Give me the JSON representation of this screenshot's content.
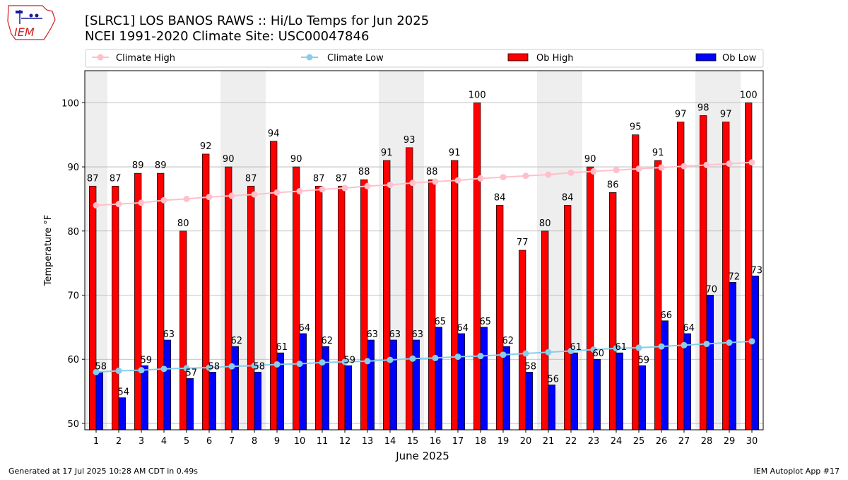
{
  "header": {
    "logo_text": "IEM",
    "title_line1": "[SLRC1] LOS BANOS RAWS :: Hi/Lo Temps for Jun 2025",
    "title_line2": "NCEI 1991-2020 Climate Site: USC00047846"
  },
  "footer": {
    "generated": "Generated at 17 Jul 2025 10:28 AM CDT in 0.49s",
    "app": "IEM Autoplot App #17"
  },
  "colors": {
    "ob_high": "#ff0000",
    "ob_low": "#0000ff",
    "climate_high": "#ffc0cb",
    "climate_low": "#87ceeb",
    "weekend_band": "#eeeeee"
  },
  "chart_data": {
    "type": "bar",
    "xlabel": "June 2025",
    "ylabel": "Temperature °F",
    "ylim": [
      49,
      105
    ],
    "yticks": [
      50,
      60,
      70,
      80,
      90,
      100
    ],
    "xlim": [
      0.5,
      30.5
    ],
    "grid": "horizontal",
    "legend_placement": "top",
    "categories": [
      "1",
      "2",
      "3",
      "4",
      "5",
      "6",
      "7",
      "8",
      "9",
      "10",
      "11",
      "12",
      "13",
      "14",
      "15",
      "16",
      "17",
      "18",
      "19",
      "20",
      "21",
      "22",
      "23",
      "24",
      "25",
      "26",
      "27",
      "28",
      "29",
      "30"
    ],
    "weekend_day_pairs": [
      [
        1,
        1
      ],
      [
        7,
        8
      ],
      [
        14,
        15
      ],
      [
        21,
        22
      ],
      [
        28,
        29
      ]
    ],
    "series": [
      {
        "name": "Ob High",
        "kind": "bar",
        "values": [
          87,
          87,
          89,
          89,
          80,
          92,
          90,
          87,
          94,
          90,
          87,
          87,
          88,
          91,
          93,
          88,
          91,
          100,
          84,
          77,
          80,
          84,
          90,
          86,
          95,
          91,
          97,
          98,
          97,
          100
        ]
      },
      {
        "name": "Ob Low",
        "kind": "bar",
        "values": [
          58,
          54,
          59,
          63,
          57,
          58,
          62,
          58,
          61,
          64,
          62,
          59,
          63,
          63,
          63,
          65,
          64,
          65,
          62,
          58,
          56,
          61,
          60,
          61,
          59,
          66,
          64,
          70,
          72,
          73
        ]
      },
      {
        "name": "Climate High",
        "kind": "line",
        "values": [
          84.0,
          84.2,
          84.4,
          84.8,
          85.0,
          85.3,
          85.5,
          85.7,
          86.0,
          86.2,
          86.5,
          86.7,
          87.0,
          87.2,
          87.5,
          87.7,
          87.9,
          88.2,
          88.4,
          88.6,
          88.8,
          89.1,
          89.3,
          89.5,
          89.7,
          89.9,
          90.1,
          90.3,
          90.5,
          90.7
        ]
      },
      {
        "name": "Climate Low",
        "kind": "line",
        "values": [
          58.0,
          58.2,
          58.3,
          58.5,
          58.6,
          58.7,
          58.9,
          59.0,
          59.2,
          59.3,
          59.5,
          59.6,
          59.7,
          59.9,
          60.1,
          60.2,
          60.4,
          60.5,
          60.7,
          60.9,
          61.1,
          61.3,
          61.5,
          61.7,
          61.8,
          62.0,
          62.2,
          62.4,
          62.6,
          62.8
        ]
      }
    ]
  }
}
